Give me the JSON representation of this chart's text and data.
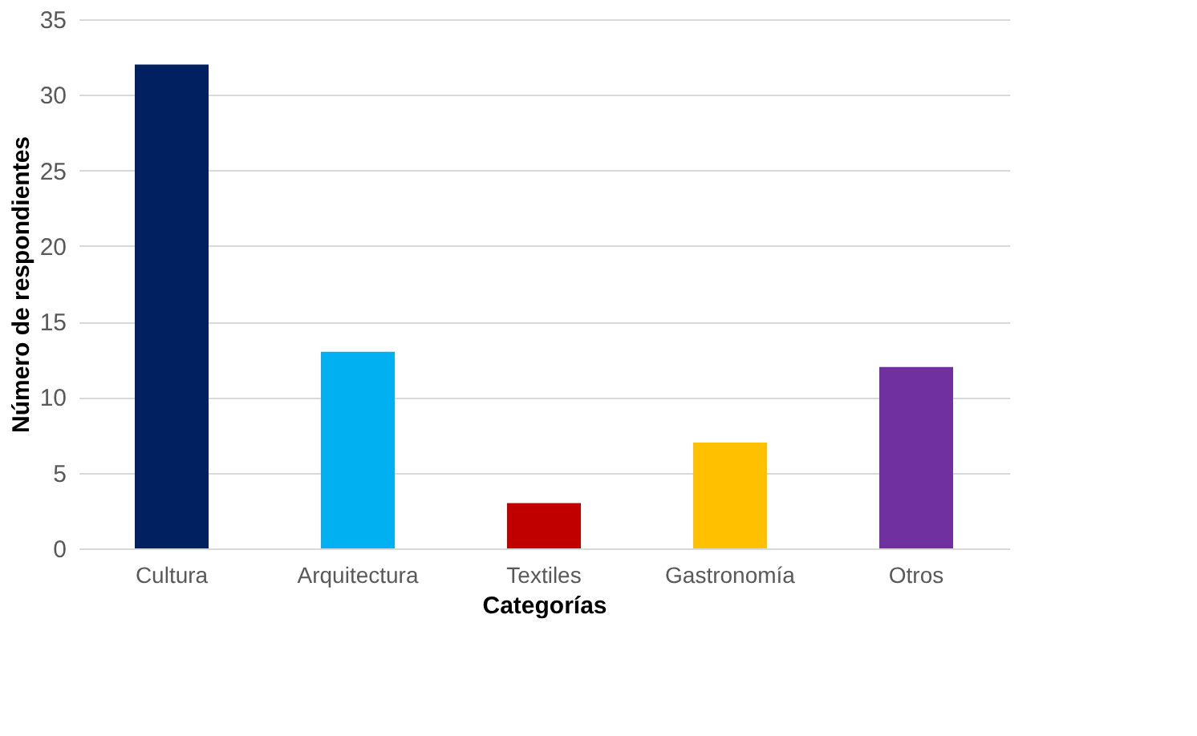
{
  "chart_data": {
    "type": "bar",
    "xlabel": "Categorías",
    "ylabel": "Número de respondientes",
    "categories": [
      "Cultura",
      "Arquitectura",
      "Textiles",
      "Gastronomía",
      "Otros"
    ],
    "values": [
      32,
      13,
      3,
      7,
      12
    ],
    "colors": [
      "#002060",
      "#00b0f0",
      "#c00000",
      "#ffc000",
      "#7030a0"
    ],
    "ylim": [
      0,
      35
    ],
    "yticks": [
      0,
      5,
      10,
      15,
      20,
      25,
      30,
      35
    ],
    "grid": "y"
  }
}
